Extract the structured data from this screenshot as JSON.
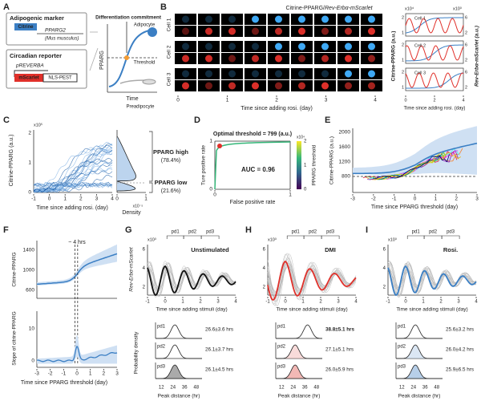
{
  "A": {
    "label": "A",
    "marker": {
      "title": "Adipogenic marker",
      "tag": "Citrine",
      "gene": "PPARG2",
      "species": "(Mus musculus)"
    },
    "reporter": {
      "title": "Circadian reporter",
      "promoter": "pREVERBA",
      "tag": "mScarlet",
      "pest": "NLS-PEST"
    },
    "schematic": {
      "commitment": "Differentiation commitment",
      "adipocyte": "Adipocyte",
      "threshold": "Threshold",
      "y_label": "PPARG",
      "x_label": "Time",
      "preadipocyte": "Preadipocyte"
    }
  },
  "B": {
    "label": "B",
    "title_green": "Citrine-PPARG/",
    "title_red": "Rev-Erbα-mScarlet",
    "cells": [
      "Cell 1",
      "Cell 2",
      "Cell 3"
    ],
    "xticks": [
      "0",
      "1",
      "2",
      "3",
      "4"
    ],
    "x_label": "Time since adding rosi. (day)",
    "plot": {
      "y_label": "Citrine-PPARG (a.u.)",
      "y2_label": "Rev-Erbα-mScarlet (a.u.)",
      "y_exp": "x10⁴",
      "y2_exp": "x10³",
      "yticks": [
        "1",
        "2"
      ],
      "y2ticks": [
        "2",
        "6"
      ],
      "xticks": [
        "0",
        "2",
        "4"
      ]
    }
  },
  "C": {
    "label": "C",
    "y_exp": "x10⁵",
    "yticks": [
      "0",
      "1",
      "2"
    ],
    "y_label": "Citrine-PPARG (a.u.)",
    "xticks": [
      "-1",
      "0",
      "1",
      "2",
      "3",
      "4"
    ],
    "x_label": "Time since adding rosi. (day)",
    "density_label": "Density",
    "density_ticks": [
      "0",
      "1"
    ],
    "density_exp": "x10⁻⁵",
    "high": "PPARG high",
    "high_pct": "(78.4%)",
    "low": "PPARG low",
    "low_pct": "(21.6%)"
  },
  "D": {
    "label": "D",
    "title": "Optimal threshold = 799 (a.u.)",
    "auc": "AUC = 0.96",
    "y_label": "Ture positive rate",
    "x_label": "False positive rate",
    "xticks": [
      "0",
      "1"
    ],
    "yticks": [
      "0",
      "1"
    ],
    "cbar_label": "PPARG threshold",
    "cbar_exp": "x10⁴",
    "cbar_ticks": [
      "0",
      "1",
      "2"
    ]
  },
  "E": {
    "label": "E",
    "yticks": [
      "800",
      "1200",
      "1600",
      "2000"
    ],
    "y_label": "Citrine-PPARG (a.u.)",
    "xticks": [
      "-3",
      "-2",
      "-1",
      "0",
      "1",
      "2",
      "3"
    ],
    "x_label": "Time since PPARG threshold (day)"
  },
  "F": {
    "label": "F",
    "annotation": "~ 4 hrs",
    "top_label": "Citrine-PPARG",
    "top_yticks": [
      "600",
      "1000",
      "1400"
    ],
    "bottom_label": "Slope of citrine-PPARG",
    "bottom_yticks": [
      "0",
      "10"
    ],
    "xticks": [
      "-3",
      "-2",
      "-1",
      "0",
      "1",
      "2",
      "3"
    ],
    "x_label": "Time since PPARG threshold (day)"
  },
  "stimuli": {
    "y_exp": "x10³",
    "y_label": "Rev-Erbα-mScarlet",
    "yticks": [
      "2",
      "4",
      "6"
    ],
    "xticks": [
      "-1",
      "0",
      "1",
      "2",
      "3",
      "4"
    ],
    "x_label": "Time since adding stimuli (day)",
    "density_label": "Probability density",
    "peak_ticks": [
      "12",
      "24",
      "36",
      "48"
    ],
    "peak_label": "Peak distance (hr)",
    "periods": [
      "pd1",
      "pd2",
      "pd3"
    ]
  },
  "G": {
    "label": "G",
    "condition": "Unstimulated",
    "peaks": [
      "26.6±3.6 hrs",
      "26.1±3.7 hrs",
      "26.1±4.5 hrs"
    ]
  },
  "H": {
    "label": "H",
    "condition": "DMI",
    "peaks": [
      "38.8±5.1 hrs",
      "27.1±5.1 hrs",
      "26.0±5.9 hrs"
    ]
  },
  "I": {
    "label": "I",
    "condition": "Rosi.",
    "peaks": [
      "25.6±3.2 hrs",
      "26.0±4.2 hrs",
      "25.9±6.5 hrs"
    ]
  }
}
